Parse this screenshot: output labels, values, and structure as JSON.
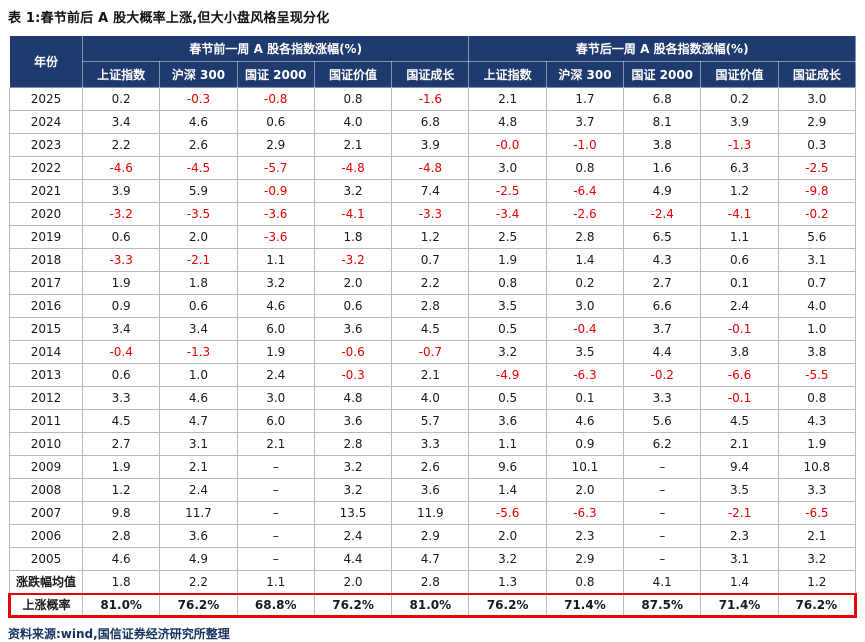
{
  "title": "表 1:春节前后 A 股大概率上涨,但大小盘风格呈现分化",
  "source": "资料来源:wind,国信证券经济研究所整理",
  "colors": {
    "header_bg": "#1e3a6e",
    "negative_value": "#e60000",
    "highlight_border": "#e8000b"
  },
  "table": {
    "year_header": "年份",
    "group_headers": [
      "春节前一周 A 股各指数涨幅(%)",
      "春节后一周 A 股各指数涨幅(%)"
    ],
    "sub_headers": [
      "上证指数",
      "沪深 300",
      "国证 2000",
      "国证价值",
      "国证成长"
    ],
    "rows": [
      {
        "year": "2025",
        "before": [
          "0.2",
          "-0.3",
          "-0.8",
          "0.8",
          "-1.6"
        ],
        "after": [
          "2.1",
          "1.7",
          "6.8",
          "0.2",
          "3.0"
        ]
      },
      {
        "year": "2024",
        "before": [
          "3.4",
          "4.6",
          "0.6",
          "4.0",
          "6.8"
        ],
        "after": [
          "4.8",
          "3.7",
          "8.1",
          "3.9",
          "2.9"
        ]
      },
      {
        "year": "2023",
        "before": [
          "2.2",
          "2.6",
          "2.9",
          "2.1",
          "3.9"
        ],
        "after": [
          "-0.0",
          "-1.0",
          "3.8",
          "-1.3",
          "0.3"
        ]
      },
      {
        "year": "2022",
        "before": [
          "-4.6",
          "-4.5",
          "-5.7",
          "-4.8",
          "-4.8"
        ],
        "after": [
          "3.0",
          "0.8",
          "1.6",
          "6.3",
          "-2.5"
        ]
      },
      {
        "year": "2021",
        "before": [
          "3.9",
          "5.9",
          "-0.9",
          "3.2",
          "7.4"
        ],
        "after": [
          "-2.5",
          "-6.4",
          "4.9",
          "1.2",
          "-9.8"
        ]
      },
      {
        "year": "2020",
        "before": [
          "-3.2",
          "-3.5",
          "-3.6",
          "-4.1",
          "-3.3"
        ],
        "after": [
          "-3.4",
          "-2.6",
          "-2.4",
          "-4.1",
          "-0.2"
        ]
      },
      {
        "year": "2019",
        "before": [
          "0.6",
          "2.0",
          "-3.6",
          "1.8",
          "1.2"
        ],
        "after": [
          "2.5",
          "2.8",
          "6.5",
          "1.1",
          "5.6"
        ]
      },
      {
        "year": "2018",
        "before": [
          "-3.3",
          "-2.1",
          "1.1",
          "-3.2",
          "0.7"
        ],
        "after": [
          "1.9",
          "1.4",
          "4.3",
          "0.6",
          "3.1"
        ]
      },
      {
        "year": "2017",
        "before": [
          "1.9",
          "1.8",
          "3.2",
          "2.0",
          "2.2"
        ],
        "after": [
          "0.8",
          "0.2",
          "2.7",
          "0.1",
          "0.7"
        ]
      },
      {
        "year": "2016",
        "before": [
          "0.9",
          "0.6",
          "4.6",
          "0.6",
          "2.8"
        ],
        "after": [
          "3.5",
          "3.0",
          "6.6",
          "2.4",
          "4.0"
        ]
      },
      {
        "year": "2015",
        "before": [
          "3.4",
          "3.4",
          "6.0",
          "3.6",
          "4.5"
        ],
        "after": [
          "0.5",
          "-0.4",
          "3.7",
          "-0.1",
          "1.0"
        ]
      },
      {
        "year": "2014",
        "before": [
          "-0.4",
          "-1.3",
          "1.9",
          "-0.6",
          "-0.7"
        ],
        "after": [
          "3.2",
          "3.5",
          "4.4",
          "3.8",
          "3.8"
        ]
      },
      {
        "year": "2013",
        "before": [
          "0.6",
          "1.0",
          "2.4",
          "-0.3",
          "2.1"
        ],
        "after": [
          "-4.9",
          "-6.3",
          "-0.2",
          "-6.6",
          "-5.5"
        ]
      },
      {
        "year": "2012",
        "before": [
          "3.3",
          "4.6",
          "3.0",
          "4.8",
          "4.0"
        ],
        "after": [
          "0.5",
          "0.1",
          "3.3",
          "-0.1",
          "0.8"
        ]
      },
      {
        "year": "2011",
        "before": [
          "4.5",
          "4.7",
          "6.0",
          "3.6",
          "5.7"
        ],
        "after": [
          "3.6",
          "4.6",
          "5.6",
          "4.5",
          "4.3"
        ]
      },
      {
        "year": "2010",
        "before": [
          "2.7",
          "3.1",
          "2.1",
          "2.8",
          "3.3"
        ],
        "after": [
          "1.1",
          "0.9",
          "6.2",
          "2.1",
          "1.9"
        ]
      },
      {
        "year": "2009",
        "before": [
          "1.9",
          "2.1",
          "–",
          "3.2",
          "2.6"
        ],
        "after": [
          "9.6",
          "10.1",
          "–",
          "9.4",
          "10.8"
        ]
      },
      {
        "year": "2008",
        "before": [
          "1.2",
          "2.4",
          "–",
          "3.2",
          "3.6"
        ],
        "after": [
          "1.4",
          "2.0",
          "–",
          "3.5",
          "3.3"
        ]
      },
      {
        "year": "2007",
        "before": [
          "9.8",
          "11.7",
          "–",
          "13.5",
          "11.9"
        ],
        "after": [
          "-5.6",
          "-6.3",
          "–",
          "-2.1",
          "-6.5"
        ]
      },
      {
        "year": "2006",
        "before": [
          "2.8",
          "3.6",
          "–",
          "2.4",
          "2.9"
        ],
        "after": [
          "2.0",
          "2.3",
          "–",
          "2.3",
          "2.1"
        ]
      },
      {
        "year": "2005",
        "before": [
          "4.6",
          "4.9",
          "–",
          "4.4",
          "4.7"
        ],
        "after": [
          "3.2",
          "2.9",
          "–",
          "3.1",
          "3.2"
        ]
      }
    ],
    "summary_rows": [
      {
        "label": "涨跌幅均值",
        "before": [
          "1.8",
          "2.2",
          "1.1",
          "2.0",
          "2.8"
        ],
        "after": [
          "1.3",
          "0.8",
          "4.1",
          "1.4",
          "1.2"
        ],
        "highlight": false
      },
      {
        "label": "上涨概率",
        "before": [
          "81.0%",
          "76.2%",
          "68.8%",
          "76.2%",
          "81.0%"
        ],
        "after": [
          "76.2%",
          "71.4%",
          "87.5%",
          "71.4%",
          "76.2%"
        ],
        "highlight": true
      }
    ]
  }
}
